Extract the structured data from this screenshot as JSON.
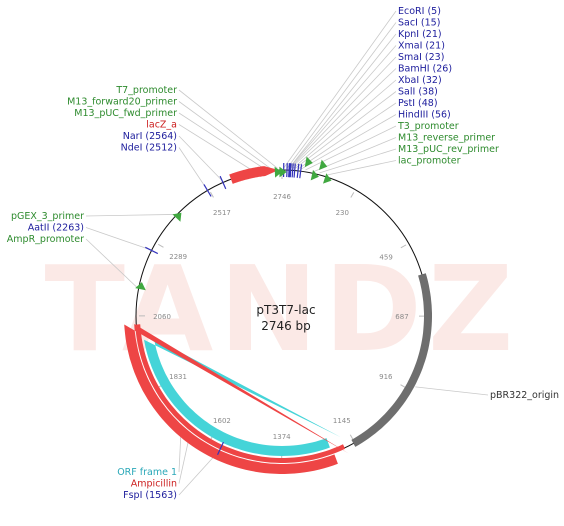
{
  "plasmid": {
    "name": "pT3T7-lac",
    "length_label": "2746 bp",
    "length": 2746
  },
  "watermark": "TANDZ",
  "colors": {
    "enzyme": "#1c1c9c",
    "feature": "#2e8b2e",
    "gene": "#cc1f1f",
    "orf": "#45d4d8",
    "origin": "#6e6e6e",
    "marker": "#40a840",
    "site_tick": "#3333bb",
    "watermark": "#fbe9e6",
    "leader": "#c9c9c9"
  },
  "ticks": [
    {
      "label": "2746",
      "pos": 2746
    },
    {
      "label": "230",
      "pos": 230
    },
    {
      "label": "459",
      "pos": 459
    },
    {
      "label": "687",
      "pos": 687
    },
    {
      "label": "916",
      "pos": 916
    },
    {
      "label": "1145",
      "pos": 1145
    },
    {
      "label": "1374",
      "pos": 1374
    },
    {
      "label": "1602",
      "pos": 1602
    },
    {
      "label": "1831",
      "pos": 1831
    },
    {
      "label": "2060",
      "pos": 2060
    },
    {
      "label": "2289",
      "pos": 2289
    },
    {
      "label": "2517",
      "pos": 2517
    }
  ],
  "features": [
    {
      "name": "lacZ_a",
      "start": 2590,
      "end": 2736,
      "kind": "gene"
    },
    {
      "name": "pBR322_origin",
      "start": 560,
      "end": 1150,
      "kind": "origin"
    },
    {
      "name": "ORF frame 1",
      "start": 1175,
      "end": 1985,
      "kind": "orf"
    },
    {
      "name": "Ampicillin",
      "start": 1175,
      "end": 2036,
      "kind": "gene"
    }
  ],
  "labels_right": [
    {
      "text": "EcoRI (5)",
      "kind": "enzyme",
      "pos": 5
    },
    {
      "text": "SacI (15)",
      "kind": "enzyme",
      "pos": 15
    },
    {
      "text": "KpnI (21)",
      "kind": "enzyme",
      "pos": 21
    },
    {
      "text": "XmaI (21)",
      "kind": "enzyme",
      "pos": 21
    },
    {
      "text": "SmaI (23)",
      "kind": "enzyme",
      "pos": 23
    },
    {
      "text": "BamHI (26)",
      "kind": "enzyme",
      "pos": 26
    },
    {
      "text": "XbaI (32)",
      "kind": "enzyme",
      "pos": 32
    },
    {
      "text": "SalI (38)",
      "kind": "enzyme",
      "pos": 38
    },
    {
      "text": "PstI (48)",
      "kind": "enzyme",
      "pos": 48
    },
    {
      "text": "HindIII (56)",
      "kind": "enzyme",
      "pos": 56
    },
    {
      "text": "T3_promoter",
      "kind": "feature",
      "pos": 70
    },
    {
      "text": "M13_reverse_primer",
      "kind": "feature",
      "pos": 95
    },
    {
      "text": "M13_pUC_rev_primer",
      "kind": "feature",
      "pos": 112
    },
    {
      "text": "lac_promoter",
      "kind": "feature",
      "pos": 135
    }
  ],
  "labels_left_top": [
    {
      "text": "T7_promoter",
      "kind": "feature",
      "pos": 2732
    },
    {
      "text": "M13_forward20_primer",
      "kind": "feature",
      "pos": 2712
    },
    {
      "text": "M13_pUC_fwd_primer",
      "kind": "feature",
      "pos": 2695
    },
    {
      "text": "lacZ_a",
      "kind": "gene",
      "pos": 2660
    },
    {
      "text": "NarI (2564)",
      "kind": "enzyme",
      "pos": 2564
    },
    {
      "text": "NdeI (2512)",
      "kind": "enzyme",
      "pos": 2512
    }
  ],
  "labels_left_mid": [
    {
      "text": "pGEX_3_primer",
      "kind": "feature",
      "pos": 2390
    },
    {
      "text": "AatII (2263)",
      "kind": "enzyme",
      "pos": 2263
    },
    {
      "text": "AmpR_promoter",
      "kind": "feature",
      "pos": 2145
    }
  ],
  "labels_left_bottom": [
    {
      "text": "ORF frame 1",
      "kind": "orf",
      "pos": 1700
    },
    {
      "text": "Ampicillin",
      "kind": "gene",
      "pos": 1665
    },
    {
      "text": "FspI (1563)",
      "kind": "enzyme",
      "pos": 1563
    }
  ],
  "label_origin": {
    "text": "pBR322_origin",
    "kind": "origin",
    "pos": 900
  },
  "site_marks": [
    5,
    15,
    21,
    23,
    26,
    32,
    38,
    48,
    56,
    2564,
    2512,
    2263,
    1563
  ],
  "triangle_marks": [
    {
      "pos": 2742,
      "dir": "in"
    },
    {
      "pos": 2728,
      "dir": "in"
    },
    {
      "pos": 70,
      "dir": "out"
    },
    {
      "pos": 95,
      "dir": "in"
    },
    {
      "pos": 112,
      "dir": "out"
    },
    {
      "pos": 135,
      "dir": "in"
    },
    {
      "pos": 2390,
      "dir": "in"
    },
    {
      "pos": 2145,
      "dir": "in"
    }
  ]
}
